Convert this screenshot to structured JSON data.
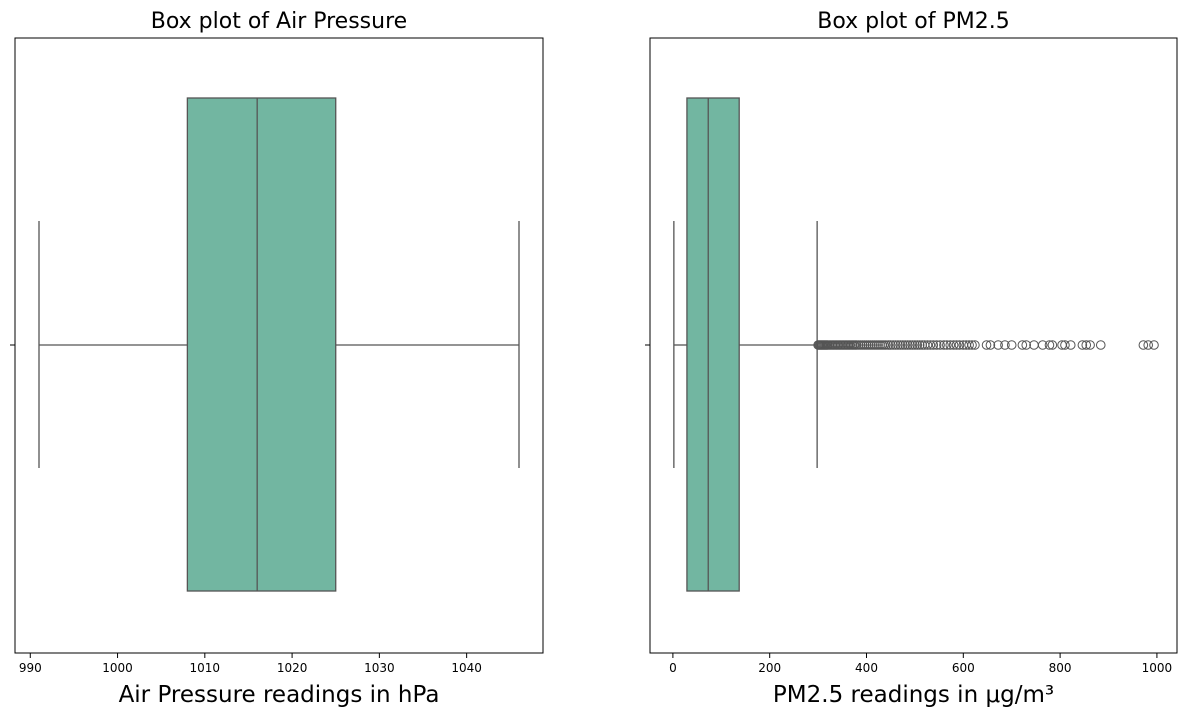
{
  "colors": {
    "box_fill": "#72b6a1",
    "line": "#555555",
    "frame": "#000000"
  },
  "chart_data": [
    {
      "type": "box",
      "title": "Box plot of Air Pressure",
      "xlabel": "Air Pressure readings in hPa",
      "ylabel": "",
      "xlim": [
        988.25,
        1048.75
      ],
      "xticks": [
        990,
        1000,
        1010,
        1020,
        1030,
        1040
      ],
      "xtick_labels": [
        "990",
        "1000",
        "1010",
        "1020",
        "1030",
        "1040"
      ],
      "grid": false,
      "box": {
        "whisker_low": 991,
        "q1": 1008,
        "median": 1016,
        "q3": 1025,
        "whisker_high": 1046
      },
      "outliers": []
    },
    {
      "type": "box",
      "title": "Box plot of PM2.5",
      "xlabel": "PM2.5 readings in μg/m³",
      "ylabel": "",
      "xlim": [
        -47.3,
        1041.5
      ],
      "xticks": [
        0,
        200,
        400,
        600,
        800,
        1000
      ],
      "xtick_labels": [
        "0",
        "200",
        "400",
        "600",
        "800",
        "1000"
      ],
      "grid": false,
      "box": {
        "whisker_low": 2,
        "q1": 29,
        "median": 73,
        "q3": 137,
        "whisker_high": 298
      },
      "outliers": [
        300,
        302,
        304,
        306,
        308,
        310,
        312,
        314,
        316,
        318,
        320,
        323,
        326,
        329,
        332,
        335,
        338,
        341,
        344,
        347,
        350,
        353,
        356,
        359,
        362,
        365,
        368,
        371,
        374,
        377,
        380,
        384,
        388,
        392,
        396,
        400,
        404,
        408,
        412,
        416,
        420,
        424,
        428,
        432,
        436,
        440,
        445,
        450,
        455,
        460,
        465,
        470,
        475,
        480,
        485,
        490,
        495,
        500,
        505,
        510,
        515,
        520,
        526,
        532,
        538,
        545,
        552,
        560,
        566,
        573,
        580,
        586,
        592,
        600,
        606,
        612,
        618,
        624,
        648,
        656,
        672,
        686,
        700,
        722,
        730,
        746,
        764,
        778,
        784,
        804,
        810,
        822,
        846,
        854,
        862,
        884,
        972,
        982,
        994
      ]
    }
  ]
}
